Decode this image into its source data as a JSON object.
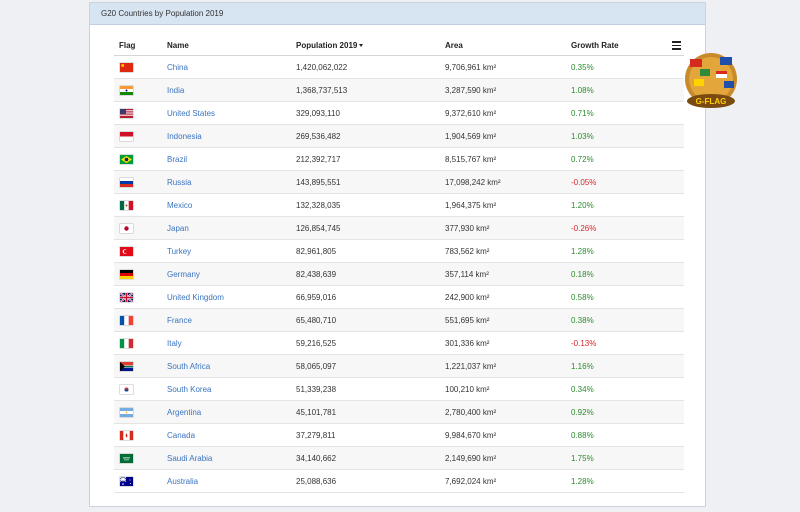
{
  "panel": {
    "title": "G20 Countries by Population 2019"
  },
  "table": {
    "columns": [
      "Flag",
      "Name",
      "Population 2019",
      "Area",
      "Growth Rate"
    ],
    "rows": [
      {
        "flag": "china-flag-icon",
        "name": "China",
        "population": "1,420,062,022",
        "area": "9,706,961 km²",
        "growth": "0.35%",
        "sign": "pos"
      },
      {
        "flag": "india-flag-icon",
        "name": "India",
        "population": "1,368,737,513",
        "area": "3,287,590 km²",
        "growth": "1.08%",
        "sign": "pos"
      },
      {
        "flag": "united-states-flag-icon",
        "name": "United States",
        "population": "329,093,110",
        "area": "9,372,610 km²",
        "growth": "0.71%",
        "sign": "pos"
      },
      {
        "flag": "indonesia-flag-icon",
        "name": "Indonesia",
        "population": "269,536,482",
        "area": "1,904,569 km²",
        "growth": "1.03%",
        "sign": "pos"
      },
      {
        "flag": "brazil-flag-icon",
        "name": "Brazil",
        "population": "212,392,717",
        "area": "8,515,767 km²",
        "growth": "0.72%",
        "sign": "pos"
      },
      {
        "flag": "russia-flag-icon",
        "name": "Russia",
        "population": "143,895,551",
        "area": "17,098,242 km²",
        "growth": "-0.05%",
        "sign": "neg"
      },
      {
        "flag": "mexico-flag-icon",
        "name": "Mexico",
        "population": "132,328,035",
        "area": "1,964,375 km²",
        "growth": "1.20%",
        "sign": "pos"
      },
      {
        "flag": "japan-flag-icon",
        "name": "Japan",
        "population": "126,854,745",
        "area": "377,930 km²",
        "growth": "-0.26%",
        "sign": "neg"
      },
      {
        "flag": "turkey-flag-icon",
        "name": "Turkey",
        "population": "82,961,805",
        "area": "783,562 km²",
        "growth": "1.28%",
        "sign": "pos"
      },
      {
        "flag": "germany-flag-icon",
        "name": "Germany",
        "population": "82,438,639",
        "area": "357,114 km²",
        "growth": "0.18%",
        "sign": "pos"
      },
      {
        "flag": "united-kingdom-flag-icon",
        "name": "United Kingdom",
        "population": "66,959,016",
        "area": "242,900 km²",
        "growth": "0.58%",
        "sign": "pos"
      },
      {
        "flag": "france-flag-icon",
        "name": "France",
        "population": "65,480,710",
        "area": "551,695 km²",
        "growth": "0.38%",
        "sign": "pos"
      },
      {
        "flag": "italy-flag-icon",
        "name": "Italy",
        "population": "59,216,525",
        "area": "301,336 km²",
        "growth": "-0.13%",
        "sign": "neg"
      },
      {
        "flag": "south-africa-flag-icon",
        "name": "South Africa",
        "population": "58,065,097",
        "area": "1,221,037 km²",
        "growth": "1.16%",
        "sign": "pos"
      },
      {
        "flag": "south-korea-flag-icon",
        "name": "South Korea",
        "population": "51,339,238",
        "area": "100,210 km²",
        "growth": "0.34%",
        "sign": "pos"
      },
      {
        "flag": "argentina-flag-icon",
        "name": "Argentina",
        "population": "45,101,781",
        "area": "2,780,400 km²",
        "growth": "0.92%",
        "sign": "pos"
      },
      {
        "flag": "canada-flag-icon",
        "name": "Canada",
        "population": "37,279,811",
        "area": "9,984,670 km²",
        "growth": "0.88%",
        "sign": "pos"
      },
      {
        "flag": "saudi-arabia-flag-icon",
        "name": "Saudi Arabia",
        "population": "34,140,662",
        "area": "2,149,690 km²",
        "growth": "1.75%",
        "sign": "pos"
      },
      {
        "flag": "australia-flag-icon",
        "name": "Australia",
        "population": "25,088,636",
        "area": "7,692,024 km²",
        "growth": "1.28%",
        "sign": "pos"
      }
    ]
  },
  "colors": {
    "positive": "#2c8a2c",
    "negative": "#d9262a",
    "link": "#3b74c0",
    "header_bg": "#d7e4f2"
  },
  "logo": {
    "text": "G-FLAG",
    "icon": "globe-flags-logo-icon"
  }
}
